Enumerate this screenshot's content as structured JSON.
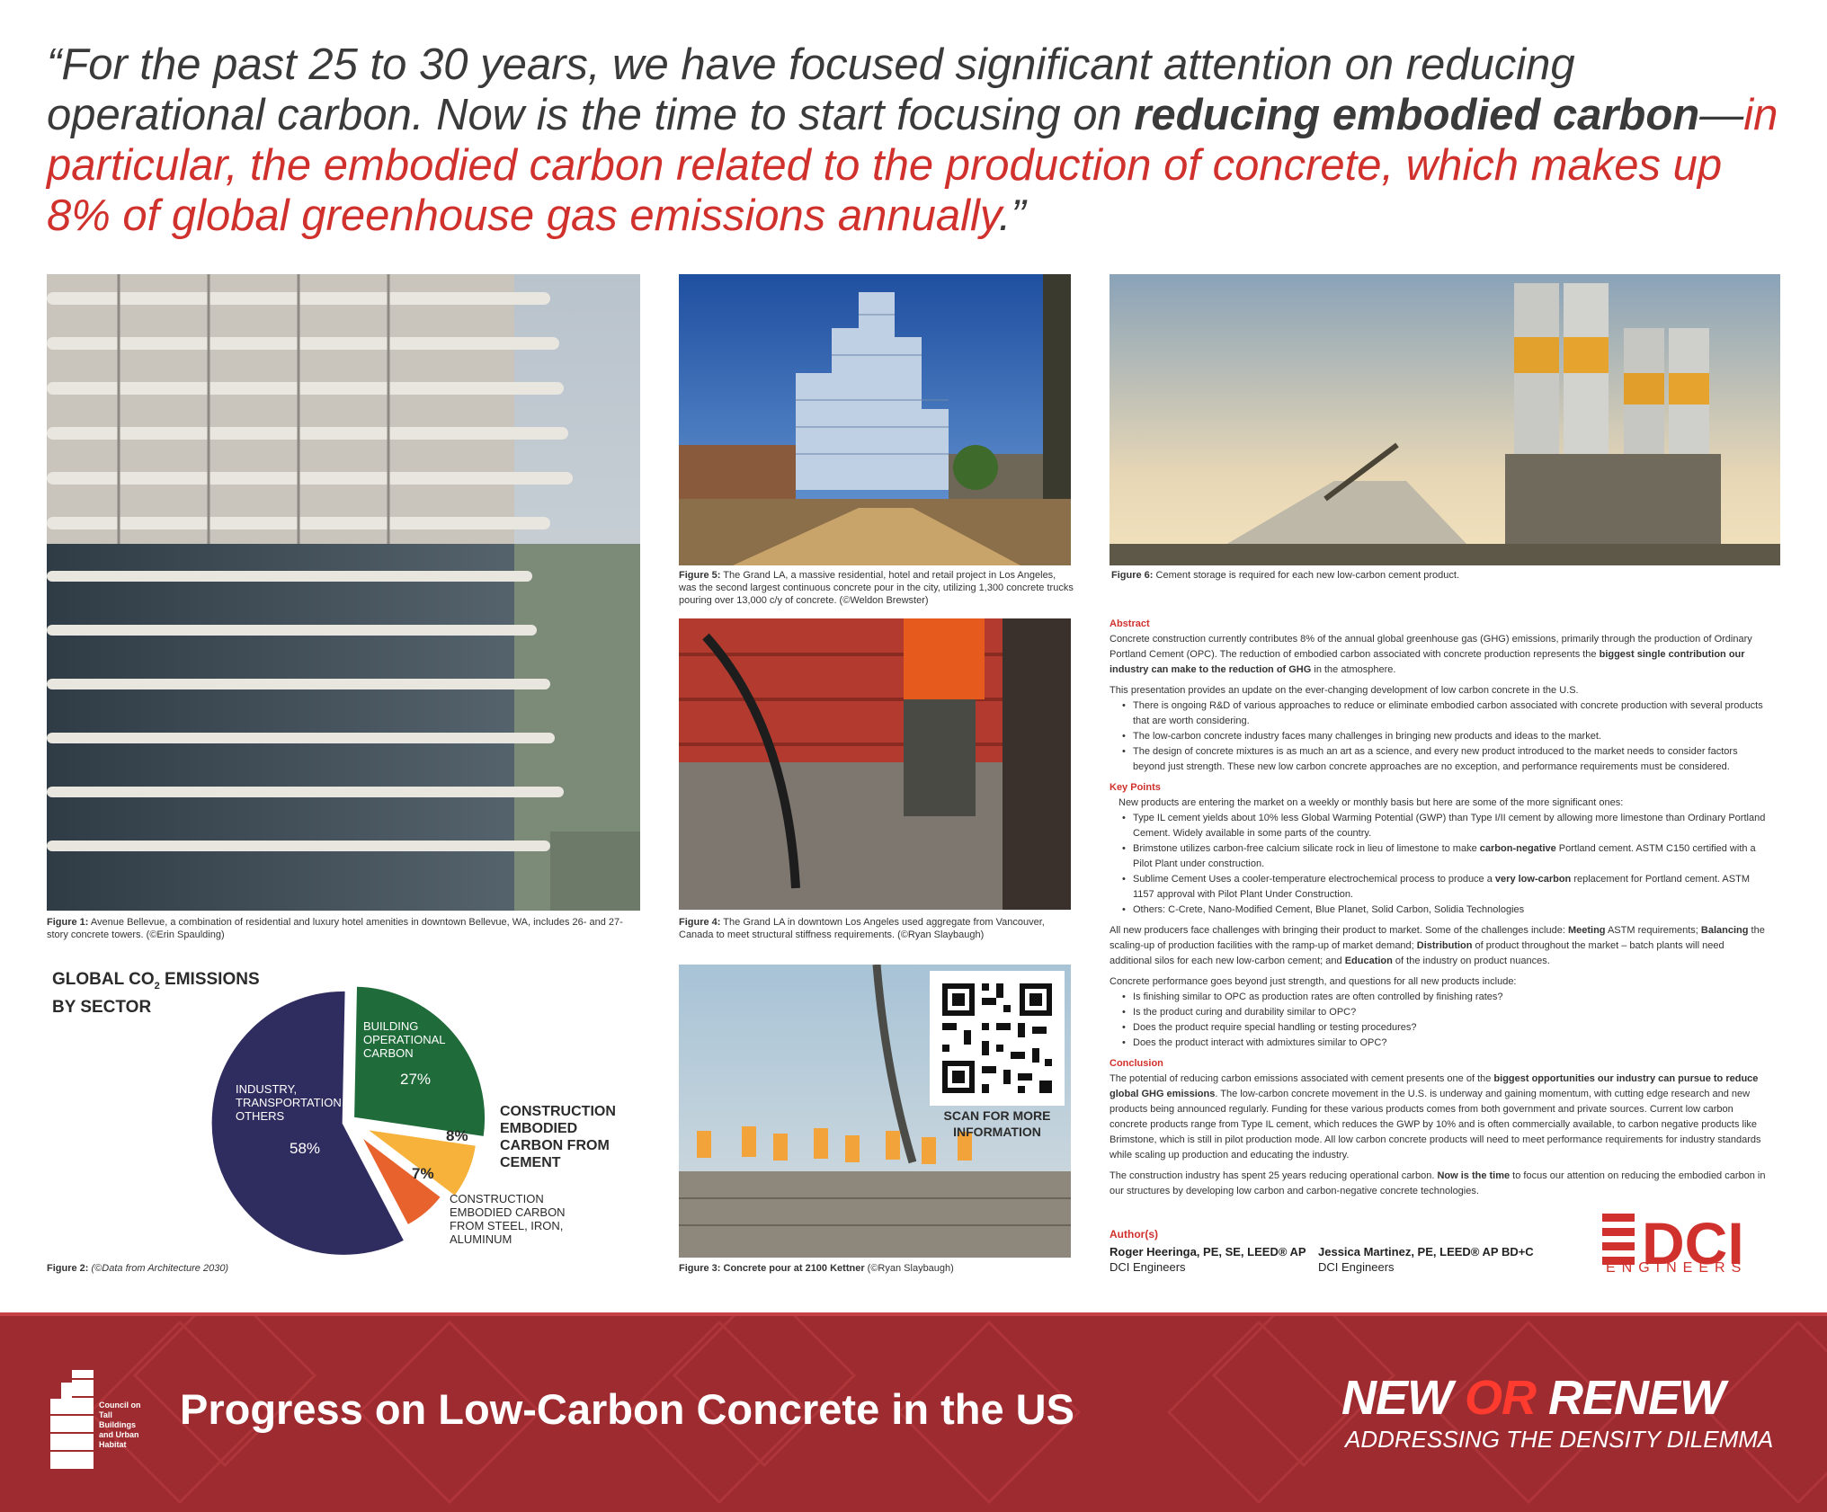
{
  "quote": {
    "part1": "“For the past 25 to 30 years, we have focused significant attention on reducing operational carbon. Now is the time to start focusing on ",
    "bold1": "reducing  embodied carbon",
    "dash": "—",
    "red": "in particular, the embodied carbon related to the production of concrete, which makes up 8% of global greenhouse gas emissions annually",
    "end": ".”"
  },
  "figures": {
    "fig1": {
      "label": "Figure 1:",
      "text": " Avenue Bellevue, a combination of residential and luxury hotel amenities in downtown Bellevue, WA, includes 26- and 27-story concrete towers. (©Erin Spaulding)"
    },
    "fig5": {
      "label": "Figure 5:",
      "text": " The Grand LA, a massive residential, hotel and retail project in Los Angeles, was the second largest continuous concrete pour in the city, utilizing 1,300 concrete trucks pouring over 13,000 c/y of concrete. (©Weldon Brewster)"
    },
    "fig6": {
      "label": "Figure 6:",
      "text": " Cement storage is required for each new low-carbon cement product."
    },
    "fig4": {
      "label": "Figure 4:",
      "text": " The Grand LA in downtown Los Angeles used aggregate from Vancouver, Canada to meet structural stiffness requirements. (©Ryan Slaybaugh)"
    },
    "fig2": {
      "label": "Figure 2:",
      "text": " (©Data from Architecture 2030)"
    },
    "fig3": {
      "label": "Figure 3: Concrete pour at 2100 Kettner",
      "text": " (©Ryan Slaybaugh)"
    }
  },
  "pie": {
    "title_line1": "GLOBAL CO",
    "title_sub": "2",
    "title_rest": " EMISSIONS",
    "title_line2": "BY SECTOR",
    "label_building": "BUILDING OPERATIONAL CARBON",
    "label_industry": "INDUSTRY, TRANSPORTATION, OTHERS",
    "label_cement": "CONSTRUCTION EMBODIED CARBON FROM CEMENT",
    "label_steel": "CONSTRUCTION EMBODIED CARBON FROM STEEL, IRON, ALUMINUM",
    "pct_building": "27%",
    "pct_industry": "58%",
    "pct_cement": "8%",
    "pct_steel": "7%",
    "colors": {
      "building": "#1f6b3a",
      "industry": "#2f2c5f",
      "cement": "#f6b23a",
      "steel": "#e8622d"
    }
  },
  "chart_data": {
    "type": "pie",
    "title": "GLOBAL CO2 EMISSIONS BY SECTOR",
    "categories": [
      "BUILDING OPERATIONAL CARBON",
      "CONSTRUCTION EMBODIED CARBON FROM CEMENT",
      "CONSTRUCTION EMBODIED CARBON FROM STEEL, IRON, ALUMINUM",
      "INDUSTRY, TRANSPORTATION, OTHERS"
    ],
    "values": [
      27,
      8,
      7,
      58
    ]
  },
  "qr": {
    "label": "SCAN FOR MORE INFORMATION"
  },
  "text": {
    "abstract_h": "Abstract",
    "abstract_p1a": "Concrete construction currently contributes 8% of the annual global greenhouse gas (GHG) emissions, primarily through the production of Ordinary Portland Cement (OPC). The reduction of embodied carbon associated with concrete production represents the ",
    "abstract_p1b": "biggest single contribution our industry can make to the reduction of GHG",
    "abstract_p1c": " in the atmosphere.",
    "abstract_p2": "This presentation provides an update on the ever-changing development of low carbon concrete in the U.S.",
    "abstract_bullets": [
      "There is ongoing R&D of various approaches to reduce or eliminate embodied carbon associated with concrete production with several products that are worth considering.",
      "The low-carbon concrete industry faces many challenges in bringing new products and ideas to the market.",
      "The design of concrete mixtures is as much an art as a science, and every new product introduced to the market needs to consider factors beyond just strength. These new low carbon concrete approaches are no exception, and performance requirements must be considered."
    ],
    "key_h": "Key Points",
    "key_intro": "New products are entering the market on a weekly or monthly basis but here are some of the more significant ones:",
    "key_b1": "Type IL cement yields about 10% less Global Warming Potential (GWP) than Type I/II cement by allowing more limestone than Ordinary Portland Cement. Widely available in some parts of the country.",
    "key_b2a": "Brimstone utilizes carbon-free calcium silicate rock in lieu of limestone to make ",
    "key_b2b": "carbon-negative",
    "key_b2c": " Portland cement. ASTM C150 certified with a Pilot Plant under construction.",
    "key_b3a": "Sublime Cement Uses a cooler-temperature electrochemical process to produce a ",
    "key_b3b": "very low-carbon",
    "key_b3c": " replacement for Portland cement. ASTM 1157 approval with Pilot Plant Under Construction.",
    "key_b4": "Others: C-Crete, Nano-Modified Cement, Blue Planet, Solid Carbon, Solidia Technologies",
    "chal_a": "All new producers face challenges with bringing their product to market. Some of the challenges include: ",
    "chal_b": "Meeting",
    "chal_c": " ASTM requirements; ",
    "chal_d": "Balancing",
    "chal_e": " the scaling-up of production facilities with the ramp-up of market demand; ",
    "chal_f": "Distribution",
    "chal_g": " of product throughout the market – batch plants will need additional silos for each new low-carbon cement; and ",
    "chal_h": "Education",
    "chal_i": " of the industry on product nuances.",
    "perf_intro": "Concrete performance goes beyond just strength, and questions for all new products include:",
    "perf_bullets": [
      "Is finishing similar to OPC as production rates are often controlled by finishing rates?",
      "Is the product curing and durability similar to OPC?",
      "Does the product require special handling or testing procedures?",
      "Does the product interact with admixtures similar to OPC?"
    ],
    "concl_h": "Conclusion",
    "concl_a": "The potential of reducing carbon emissions associated with cement presents one of the ",
    "concl_b": "biggest opportunities our industry can pursue to reduce global GHG emissions",
    "concl_c": ". The low-carbon concrete movement in the U.S. is underway and gaining momentum, with cutting edge research and new products being announced regularly. Funding for these various products comes from both government and private sources. Current low carbon concrete products range from Type IL cement, which reduces the GWP by 10% and is often commercially available, to carbon negative products like Brimstone, which is still in pilot production mode. All low carbon concrete products will need to meet performance requirements for industry standards while scaling up production and educating the industry.",
    "final_a": "The construction industry has spent 25 years reducing operational carbon. ",
    "final_b": "Now is the time",
    "final_c": " to focus our attention on reducing the embodied carbon in our structures by developing low carbon and carbon-negative concrete technologies.",
    "authors_h": "Author(s)",
    "author1_name": "Roger Heeringa, PE, SE, LEED® AP",
    "author1_org": "DCI Engineers",
    "author2_name": "Jessica Martinez, PE, LEED® AP BD+C",
    "author2_org": "DCI Engineers"
  },
  "logos": {
    "dci": "DCI",
    "dci_sub": "ENGINEERS",
    "ctbuh": "Council on Tall Buildings and Urban Habitat"
  },
  "banner": {
    "title": "Progress on Low-Carbon Concrete in the US",
    "nor_new": "NEW ",
    "nor_or": "OR",
    "nor_renew": " RENEW",
    "nor_sub": "ADDRESSING THE DENSITY DILEMMA",
    "color": "#9e2b2f"
  }
}
